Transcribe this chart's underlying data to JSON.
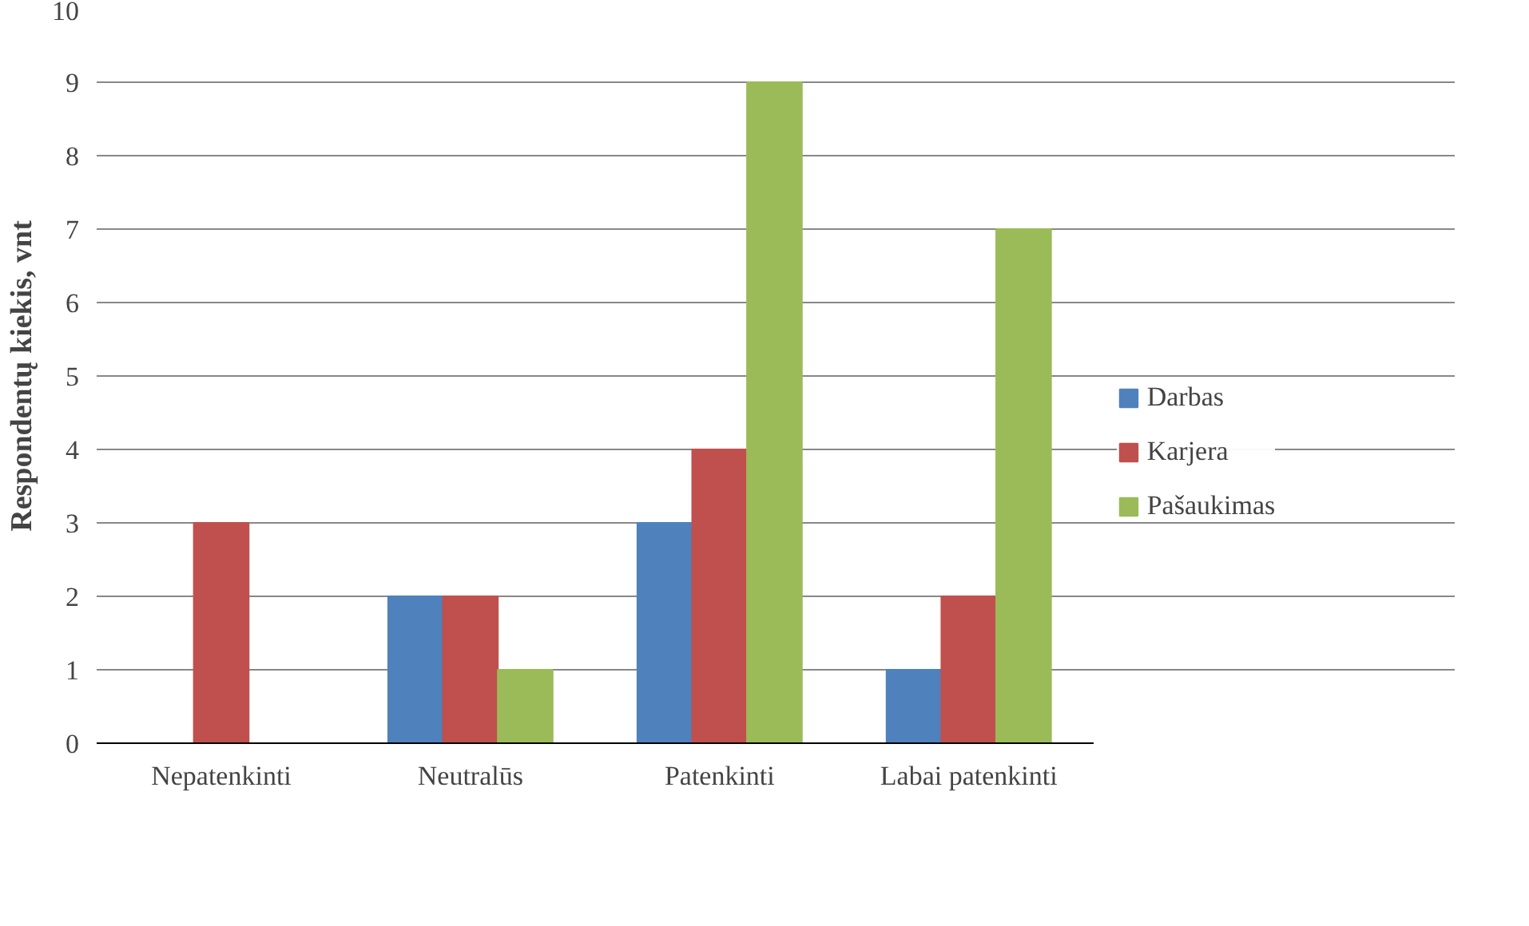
{
  "chart_data": {
    "type": "bar",
    "ylabel": "Respondentų kiekis, vnt",
    "categories": [
      "Nepatenkinti",
      "Neutralūs",
      "Patenkinti",
      "Labai patenkinti"
    ],
    "series": [
      {
        "name": "Darbas",
        "color": "#4f81bd",
        "values": [
          0,
          2,
          3,
          1
        ]
      },
      {
        "name": "Karjera",
        "color": "#c0504d",
        "values": [
          3,
          2,
          4,
          2
        ]
      },
      {
        "name": "Pašaukimas",
        "color": "#9bbb59",
        "values": [
          0,
          1,
          9,
          7
        ]
      }
    ],
    "ylim": [
      0,
      10
    ],
    "yticks": [
      0,
      1,
      2,
      3,
      4,
      5,
      6,
      7,
      8,
      9,
      10
    ],
    "grid": "y",
    "legend": "right"
  }
}
